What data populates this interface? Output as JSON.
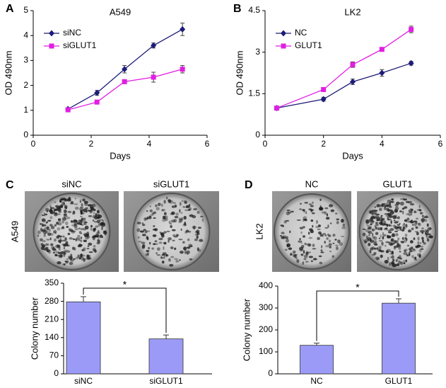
{
  "chart_data": [
    {
      "panel": "A",
      "type": "line",
      "title": "A549",
      "x_label": "Days",
      "y_label": "OD  490nm",
      "x": [
        1.2,
        2.2,
        3.15,
        4.15,
        5.15
      ],
      "xlim": [
        0,
        6
      ],
      "xticks": [
        0,
        2,
        4,
        6
      ],
      "ylim": [
        0,
        5
      ],
      "yticks": [
        0,
        1,
        2,
        3,
        4,
        5
      ],
      "legend": "upper left",
      "series": [
        {
          "name": "siNC",
          "color": "#1c1c78",
          "marker": "diamond",
          "values": [
            1.05,
            1.7,
            2.65,
            3.6,
            4.25
          ],
          "errors": [
            0.05,
            0.1,
            0.15,
            0.1,
            0.25
          ]
        },
        {
          "name": "siGLUT1",
          "color": "#e21ee2",
          "marker": "square",
          "values": [
            1.02,
            1.33,
            2.15,
            2.33,
            2.65
          ],
          "errors": [
            0.05,
            0.05,
            0.08,
            0.2,
            0.15
          ]
        }
      ]
    },
    {
      "panel": "B",
      "type": "line",
      "title": "LK2",
      "x_label": "Days",
      "y_label": "OD  490nm",
      "x": [
        0.4,
        2,
        3,
        4,
        5
      ],
      "xlim": [
        0,
        6
      ],
      "xticks": [
        0,
        2,
        4,
        6
      ],
      "ylim": [
        0,
        4.5
      ],
      "yticks": [
        0,
        1.5,
        3,
        4.5
      ],
      "legend": "upper left",
      "series": [
        {
          "name": "NC",
          "color": "#1c1c78",
          "marker": "diamond",
          "values": [
            0.98,
            1.3,
            1.93,
            2.25,
            2.6
          ],
          "errors": [
            0.05,
            0.07,
            0.1,
            0.12,
            0.07
          ]
        },
        {
          "name": "GLUT1",
          "color": "#e21ee2",
          "marker": "square",
          "values": [
            0.98,
            1.65,
            2.55,
            3.1,
            3.82
          ],
          "errors": [
            0.05,
            0.05,
            0.1,
            0.05,
            0.12
          ]
        }
      ]
    },
    {
      "panel": "C",
      "type": "bar",
      "row_label": "A549",
      "image_labels": [
        "siNC",
        "siGLUT1"
      ],
      "y_label": "Colony number",
      "categories": [
        "siNC",
        "siGLUT1"
      ],
      "values": [
        278,
        135
      ],
      "errors": [
        20,
        15
      ],
      "color": "#9b9bf7",
      "ylim": [
        0,
        350
      ],
      "yticks": [
        0,
        70,
        140,
        210,
        280,
        350
      ],
      "annotation": "*"
    },
    {
      "panel": "D",
      "type": "bar",
      "row_label": "LK2",
      "image_labels": [
        "NC",
        "GLUT1"
      ],
      "y_label": "Colony number",
      "categories": [
        "NC",
        "GLUT1"
      ],
      "values": [
        130,
        322
      ],
      "errors": [
        10,
        20
      ],
      "color": "#9b9bf7",
      "ylim": [
        0,
        400
      ],
      "yticks": [
        0,
        100,
        200,
        300,
        400
      ],
      "annotation": "*"
    }
  ]
}
